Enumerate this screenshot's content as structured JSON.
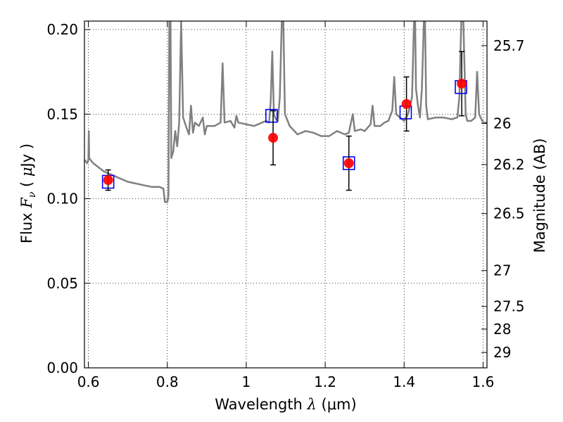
{
  "chart_data": {
    "type": "scatter",
    "xlabel": "Wavelength  λ (μm)",
    "ylabel": "Flux  Fν  ( μJy )",
    "ylabel_parts": {
      "prefix": "Flux  ",
      "symbol": "F",
      "subscript": "ν",
      "suffix_open": "  ( ",
      "mu": "μ",
      "suffix_close": "Jy )"
    },
    "xlabel_parts": {
      "prefix": "Wavelength  ",
      "symbol": "λ",
      "suffix": " (μm)"
    },
    "right_ylabel": "Magnitude (AB)",
    "xlim": [
      0.59,
      1.61
    ],
    "ylim": [
      0.0,
      0.205
    ],
    "grid": true,
    "x_ticks": [
      0.6,
      0.8,
      1.0,
      1.2,
      1.4,
      1.6
    ],
    "x_tick_labels": [
      "0.6",
      "0.8",
      "1",
      "1.2",
      "1.4",
      "1.6"
    ],
    "y_ticks": [
      0.0,
      0.05,
      0.1,
      0.15,
      0.2
    ],
    "y_tick_labels": [
      "0.00",
      "0.05",
      "0.10",
      "0.15",
      "0.20"
    ],
    "right_ticks": [
      {
        "label": "25.7",
        "flux": 0.1905
      },
      {
        "label": "26",
        "flux": 0.1445
      },
      {
        "label": "26.2",
        "flux": 0.1202
      },
      {
        "label": "26.5",
        "flux": 0.0912
      },
      {
        "label": "27",
        "flux": 0.0575
      },
      {
        "label": "27.5",
        "flux": 0.0363
      },
      {
        "label": "28",
        "flux": 0.0229
      },
      {
        "label": "29",
        "flux": 0.0091
      }
    ],
    "model_spectrum": {
      "color": "#808080",
      "points": [
        [
          0.59,
          0.123
        ],
        [
          0.597,
          0.121
        ],
        [
          0.6,
          0.123
        ],
        [
          0.601,
          0.14
        ],
        [
          0.602,
          0.124
        ],
        [
          0.612,
          0.121
        ],
        [
          0.64,
          0.116
        ],
        [
          0.66,
          0.114
        ],
        [
          0.68,
          0.112
        ],
        [
          0.7,
          0.11
        ],
        [
          0.72,
          0.109
        ],
        [
          0.74,
          0.108
        ],
        [
          0.76,
          0.107
        ],
        [
          0.78,
          0.107
        ],
        [
          0.79,
          0.106
        ],
        [
          0.794,
          0.098
        ],
        [
          0.8,
          0.098
        ],
        [
          0.803,
          0.102
        ],
        [
          0.805,
          0.205
        ],
        [
          0.808,
          0.205
        ],
        [
          0.81,
          0.124
        ],
        [
          0.815,
          0.128
        ],
        [
          0.82,
          0.14
        ],
        [
          0.825,
          0.131
        ],
        [
          0.83,
          0.145
        ],
        [
          0.835,
          0.205
        ],
        [
          0.84,
          0.148
        ],
        [
          0.85,
          0.141
        ],
        [
          0.855,
          0.138
        ],
        [
          0.86,
          0.155
        ],
        [
          0.865,
          0.139
        ],
        [
          0.87,
          0.145
        ],
        [
          0.88,
          0.143
        ],
        [
          0.89,
          0.148
        ],
        [
          0.895,
          0.138
        ],
        [
          0.9,
          0.143
        ],
        [
          0.92,
          0.143
        ],
        [
          0.935,
          0.145
        ],
        [
          0.94,
          0.18
        ],
        [
          0.945,
          0.145
        ],
        [
          0.96,
          0.146
        ],
        [
          0.97,
          0.142
        ],
        [
          0.975,
          0.149
        ],
        [
          0.98,
          0.145
        ],
        [
          1.0,
          0.144
        ],
        [
          1.02,
          0.143
        ],
        [
          1.04,
          0.145
        ],
        [
          1.05,
          0.146
        ],
        [
          1.058,
          0.145
        ],
        [
          1.062,
          0.158
        ],
        [
          1.066,
          0.187
        ],
        [
          1.07,
          0.15
        ],
        [
          1.075,
          0.147
        ],
        [
          1.08,
          0.146
        ],
        [
          1.085,
          0.16
        ],
        [
          1.09,
          0.205
        ],
        [
          1.094,
          0.205
        ],
        [
          1.098,
          0.15
        ],
        [
          1.11,
          0.143
        ],
        [
          1.13,
          0.138
        ],
        [
          1.15,
          0.14
        ],
        [
          1.17,
          0.139
        ],
        [
          1.19,
          0.137
        ],
        [
          1.21,
          0.137
        ],
        [
          1.23,
          0.14
        ],
        [
          1.25,
          0.138
        ],
        [
          1.26,
          0.139
        ],
        [
          1.27,
          0.15
        ],
        [
          1.275,
          0.14
        ],
        [
          1.29,
          0.141
        ],
        [
          1.3,
          0.14
        ],
        [
          1.315,
          0.144
        ],
        [
          1.32,
          0.155
        ],
        [
          1.325,
          0.143
        ],
        [
          1.34,
          0.143
        ],
        [
          1.35,
          0.145
        ],
        [
          1.36,
          0.146
        ],
        [
          1.37,
          0.152
        ],
        [
          1.375,
          0.172
        ],
        [
          1.38,
          0.15
        ],
        [
          1.39,
          0.148
        ],
        [
          1.4,
          0.146
        ],
        [
          1.41,
          0.15
        ],
        [
          1.42,
          0.16
        ],
        [
          1.425,
          0.205
        ],
        [
          1.428,
          0.205
        ],
        [
          1.43,
          0.165
        ],
        [
          1.435,
          0.155
        ],
        [
          1.44,
          0.148
        ],
        [
          1.445,
          0.165
        ],
        [
          1.45,
          0.205
        ],
        [
          1.453,
          0.205
        ],
        [
          1.456,
          0.155
        ],
        [
          1.46,
          0.147
        ],
        [
          1.48,
          0.148
        ],
        [
          1.5,
          0.148
        ],
        [
          1.52,
          0.147
        ],
        [
          1.535,
          0.148
        ],
        [
          1.54,
          0.16
        ],
        [
          1.545,
          0.205
        ],
        [
          1.55,
          0.205
        ],
        [
          1.556,
          0.15
        ],
        [
          1.56,
          0.146
        ],
        [
          1.57,
          0.146
        ],
        [
          1.58,
          0.148
        ],
        [
          1.585,
          0.175
        ],
        [
          1.59,
          0.15
        ],
        [
          1.6,
          0.145
        ],
        [
          1.61,
          0.145
        ]
      ]
    },
    "series": [
      {
        "marker": "square",
        "color": "#0000ff",
        "points": [
          {
            "x": 0.65,
            "y": 0.11
          },
          {
            "x": 1.064,
            "y": 0.149
          },
          {
            "x": 1.26,
            "y": 0.121
          },
          {
            "x": 1.404,
            "y": 0.151
          },
          {
            "x": 1.544,
            "y": 0.166
          }
        ]
      },
      {
        "marker": "circle",
        "color": "#ff0000",
        "points": [
          {
            "x": 0.65,
            "y": 0.111,
            "yerr": 0.006
          },
          {
            "x": 1.068,
            "y": 0.136,
            "yerr": 0.016
          },
          {
            "x": 1.26,
            "y": 0.121,
            "yerr": 0.016
          },
          {
            "x": 1.406,
            "y": 0.156,
            "yerr": 0.016
          },
          {
            "x": 1.546,
            "y": 0.168,
            "yerr": 0.019
          }
        ]
      }
    ]
  }
}
